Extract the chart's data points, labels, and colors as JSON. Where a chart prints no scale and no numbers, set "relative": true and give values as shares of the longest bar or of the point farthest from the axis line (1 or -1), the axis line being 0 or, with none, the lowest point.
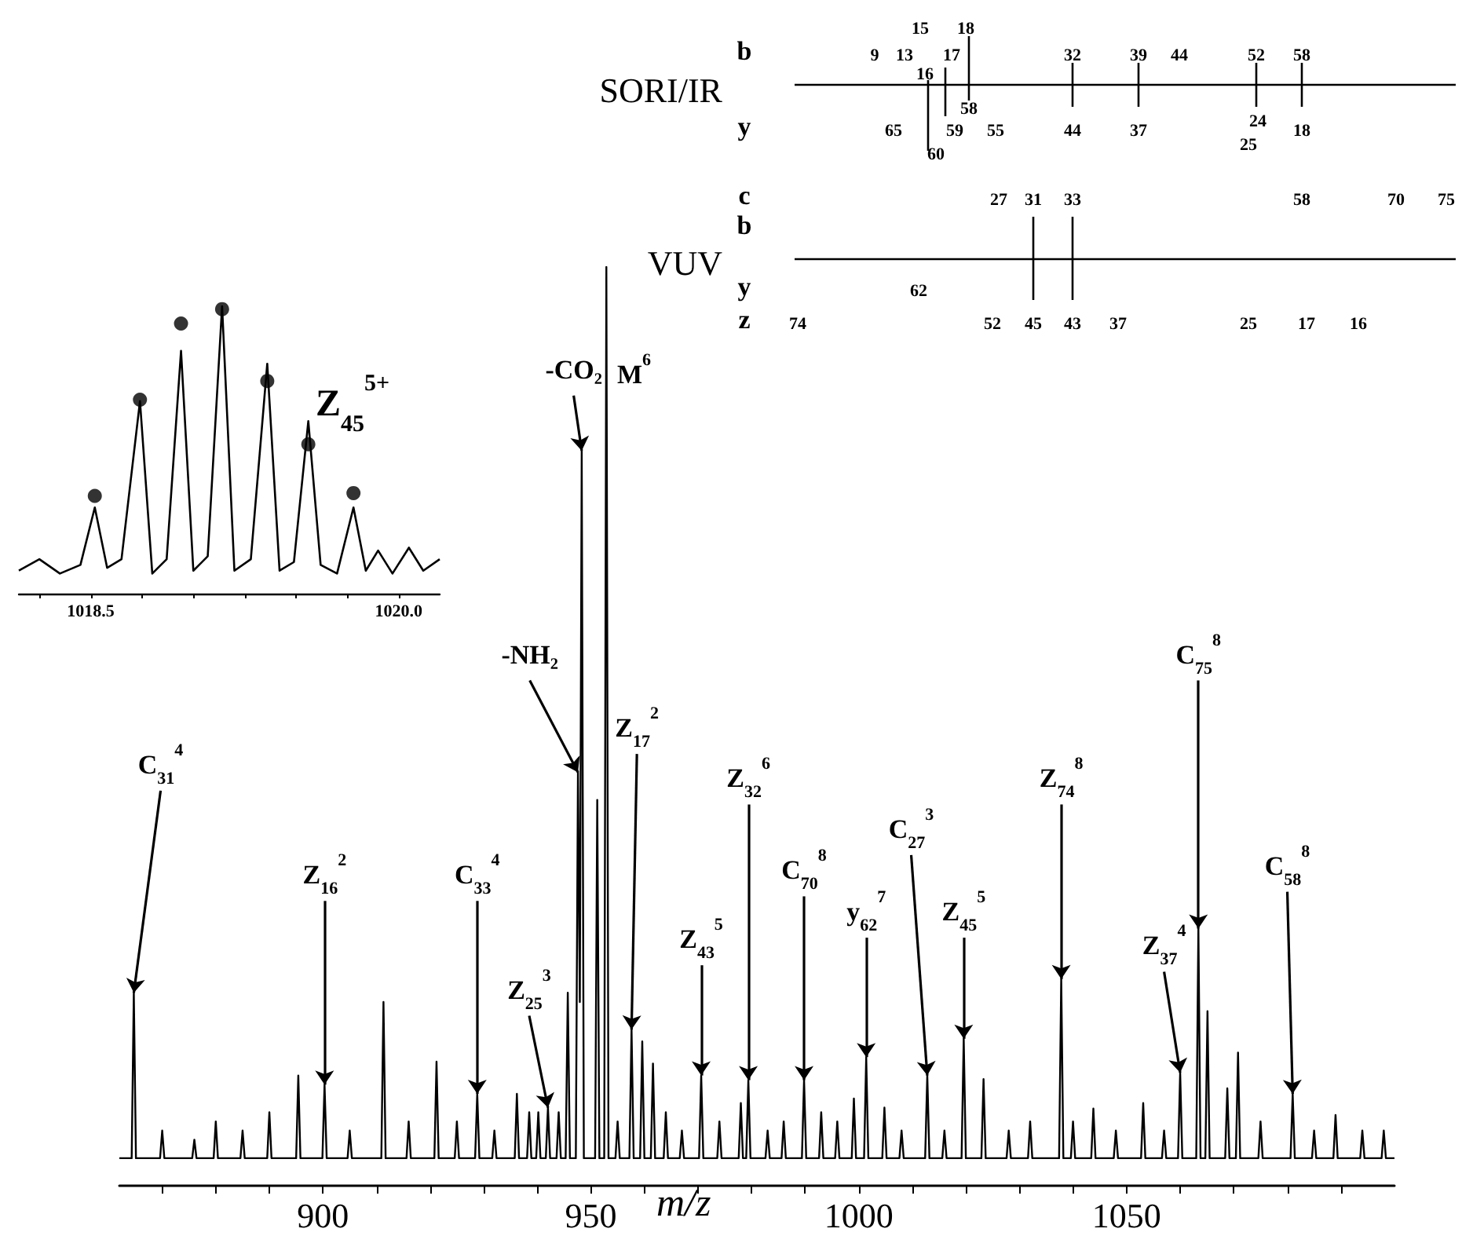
{
  "chart_data": [
    {
      "type": "other",
      "annotations": [
        "SORI/IR",
        "b",
        "y",
        "9",
        "13",
        "15",
        "18",
        "17",
        "16",
        "32",
        "39",
        "44",
        "52",
        "58",
        "65",
        "59",
        "58",
        "55",
        "44",
        "37",
        "24",
        "25",
        "18",
        "60",
        "VUV",
        "c",
        "b",
        "y",
        "z",
        "27",
        "31",
        "33",
        "58",
        "70",
        "75",
        "62",
        "74",
        "52",
        "45",
        "43",
        "37",
        "25",
        "17",
        "16"
      ]
    },
    {
      "type": "line",
      "relative": true,
      "title": "Z$_{45}$$^{5+}$",
      "xlim": [
        1018.15,
        1020.2
      ],
      "xticks": [
        {
          "value": 1018.25,
          "label": null
        },
        1018.5,
        {
          "value": 1018.75,
          "label": null
        },
        {
          "value": 1019,
          "label": null
        },
        {
          "value": 1019.25,
          "label": null
        },
        {
          "value": 1019.5,
          "label": null
        },
        {
          "value": 1019.75,
          "label": null
        },
        {
          "value": 1020,
          "label": "1020.0"
        }
      ],
      "series": [
        {
          "type": "line",
          "color": "#000000",
          "marker": "none",
          "x": [
            1018.15,
            1018.25,
            1018.35,
            1018.45,
            1018.52,
            1018.58,
            1018.65,
            1018.74,
            1018.8,
            1018.87,
            1018.94,
            1019.0,
            1019.07,
            1019.14,
            1019.2,
            1019.28,
            1019.36,
            1019.42,
            1019.49,
            1019.56,
            1019.62,
            1019.7,
            1019.78,
            1019.84,
            1019.9,
            1019.97,
            1020.05,
            1020.12,
            1020.2
          ],
          "values": [
            0.08,
            0.12,
            0.07,
            0.1,
            0.3,
            0.09,
            0.12,
            0.67,
            0.07,
            0.12,
            0.845,
            0.08,
            0.13,
            1,
            0.08,
            0.12,
            0.8,
            0.08,
            0.11,
            0.6,
            0.1,
            0.07,
            0.3,
            0.08,
            0.15,
            0.07,
            0.16,
            0.08,
            0.12
          ]
        },
        {
          "type": "scatter",
          "color": "#000000",
          "marker": "circle",
          "x": [
            1018.52,
            1018.74,
            1018.94,
            1019.14,
            1019.36,
            1019.56,
            1019.78
          ],
          "values": [
            0.34,
            0.675,
            0.94,
            0.99,
            0.74,
            0.52,
            0.35
          ]
        }
      ]
    },
    {
      "type": "line",
      "relative": true,
      "color": "#000000",
      "marker": "none",
      "xlabel": "m/z",
      "xlim": [
        862,
        1100
      ],
      "xticks": [
        {
          "value": 870,
          "label": null
        },
        {
          "value": 880,
          "label": null
        },
        {
          "value": 890,
          "label": null
        },
        900,
        {
          "value": 910,
          "label": null
        },
        {
          "value": 920,
          "label": null
        },
        {
          "value": 930,
          "label": null
        },
        {
          "value": 940,
          "label": null
        },
        950,
        {
          "value": 960,
          "label": null
        },
        {
          "value": 970,
          "label": null
        },
        {
          "value": 980,
          "label": null
        },
        {
          "value": 990,
          "label": null
        },
        1000,
        {
          "value": 1010,
          "label": null
        },
        {
          "value": 1020,
          "label": null
        },
        {
          "value": 1030,
          "label": null
        },
        {
          "value": 1040,
          "label": null
        },
        1050,
        {
          "value": 1060,
          "label": null
        },
        {
          "value": 1070,
          "label": null
        },
        {
          "value": 1080,
          "label": null
        },
        {
          "value": 1090,
          "label": null
        }
      ],
      "x": [
        862,
        864.3,
        864.7,
        865.1,
        869.6,
        870,
        870.4,
        875.6,
        876,
        876.4,
        879.6,
        880,
        880.4,
        884.6,
        885,
        885.4,
        889.6,
        890,
        890.4,
        895,
        895.4,
        895.8,
        899.9,
        900.3,
        900.7,
        904.6,
        905,
        905.4,
        910.9,
        911.3,
        911.7,
        915.6,
        916,
        916.4,
        920.8,
        921.2,
        921.6,
        924.6,
        925,
        925.4,
        928.4,
        928.8,
        929.2,
        931.6,
        932,
        932.4,
        935.8,
        936.2,
        936.6,
        938.1,
        938.5,
        938.9,
        939.8,
        940.2,
        940.6,
        941.6,
        942,
        942.4,
        943.6,
        944,
        944.4,
        945.3,
        945.7,
        946.1,
        947.2,
        947.6,
        947.95,
        948.3,
        948.7,
        950.8,
        951.2,
        951.6,
        952.5,
        952.9,
        953.3,
        954.6,
        955,
        955.4,
        957.2,
        957.6,
        958,
        959.2,
        959.6,
        960,
        961.2,
        961.6,
        962,
        963.6,
        964,
        964.4,
        966.6,
        967,
        967.4,
        970.2,
        970.6,
        971,
        973.6,
        974,
        974.4,
        977.6,
        978,
        978.4,
        979.0,
        979.4,
        979.8,
        982.6,
        983,
        983.4,
        985.6,
        986,
        986.4,
        989.4,
        989.8,
        990.2,
        992.6,
        993,
        993.4,
        995.6,
        996,
        996.4,
        998.7,
        999.1,
        999.5,
        1001,
        1001.4,
        1001.8,
        1004.4,
        1004.8,
        1005.2,
        1007.6,
        1008,
        1008.4,
        1012.4,
        1012.8,
        1013.2,
        1015.6,
        1016,
        1016.4,
        1019.2,
        1019.6,
        1020,
        1022.9,
        1023.3,
        1023.7,
        1027.6,
        1028,
        1028.4,
        1031.6,
        1032,
        1032.4,
        1037.4,
        1037.8,
        1038.2,
        1039.6,
        1040,
        1040.4,
        1043.4,
        1043.8,
        1044.2,
        1047.6,
        1048,
        1048.4,
        1052.7,
        1053.1,
        1053.5,
        1056.6,
        1057,
        1057.4,
        1059.6,
        1060,
        1060.4,
        1063,
        1063.4,
        1063.8,
        1064.7,
        1065.1,
        1065.5,
        1068.4,
        1068.8,
        1069.2,
        1070.4,
        1070.8,
        1071.2,
        1074.6,
        1075,
        1075.4,
        1080.6,
        1081,
        1081.4,
        1084.6,
        1085,
        1085.4,
        1088.6,
        1089,
        1089.4,
        1093.6,
        1094,
        1094.4,
        1097.6,
        1098,
        1098.4,
        1100
      ],
      "values": [
        0.03,
        0.03,
        0.21,
        0.03,
        0.03,
        0.06,
        0.03,
        0.03,
        0.05,
        0.03,
        0.03,
        0.07,
        0.03,
        0.03,
        0.06,
        0.03,
        0.03,
        0.08,
        0.03,
        0.03,
        0.12,
        0.03,
        0.03,
        0.11,
        0.03,
        0.03,
        0.06,
        0.03,
        0.03,
        0.2,
        0.03,
        0.03,
        0.07,
        0.03,
        0.03,
        0.135,
        0.03,
        0.03,
        0.07,
        0.03,
        0.03,
        0.1,
        0.03,
        0.03,
        0.06,
        0.03,
        0.03,
        0.1,
        0.03,
        0.03,
        0.08,
        0.03,
        0.03,
        0.08,
        0.03,
        0.03,
        0.085,
        0.03,
        0.03,
        0.08,
        0.03,
        0.03,
        0.21,
        0.03,
        0.03,
        0.45,
        0.2,
        0.8,
        0.03,
        0.03,
        0.42,
        0.03,
        0.03,
        1,
        0.03,
        0.03,
        0.07,
        0.03,
        0.03,
        0.17,
        0.03,
        0.03,
        0.157,
        0.03,
        0.03,
        0.133,
        0.03,
        0.03,
        0.08,
        0.03,
        0.03,
        0.06,
        0.03,
        0.03,
        0.12,
        0.03,
        0.03,
        0.07,
        0.03,
        0.03,
        0.09,
        0.03,
        0.03,
        0.115,
        0.03,
        0.03,
        0.06,
        0.03,
        0.03,
        0.07,
        0.03,
        0.03,
        0.115,
        0.03,
        0.03,
        0.08,
        0.03,
        0.03,
        0.07,
        0.03,
        0.03,
        0.095,
        0.03,
        0.03,
        0.14,
        0.03,
        0.03,
        0.085,
        0.03,
        0.03,
        0.06,
        0.03,
        0.03,
        0.12,
        0.03,
        0.03,
        0.06,
        0.03,
        0.03,
        0.16,
        0.03,
        0.03,
        0.116,
        0.03,
        0.03,
        0.06,
        0.03,
        0.03,
        0.07,
        0.03,
        0.03,
        0.225,
        0.03,
        0.03,
        0.07,
        0.03,
        0.03,
        0.084,
        0.03,
        0.03,
        0.06,
        0.03,
        0.03,
        0.09,
        0.03,
        0.03,
        0.06,
        0.03,
        0.03,
        0.123,
        0.03,
        0.03,
        0.28,
        0.03,
        0.03,
        0.19,
        0.03,
        0.03,
        0.106,
        0.03,
        0.03,
        0.145,
        0.03,
        0.03,
        0.07,
        0.03,
        0.03,
        0.1,
        0.03,
        0.03,
        0.06,
        0.03,
        0.03,
        0.077,
        0.03,
        0.03,
        0.06,
        0.03,
        0.03,
        0.06,
        0.03,
        0.03
      ],
      "annotations": [
        {
          "text": "C$_{31}$$^{4}$",
          "x": 864.7,
          "y": 0.21
        },
        {
          "text": "Z$_{16}$$^{2}$",
          "x": 900.3,
          "y": 0.11
        },
        {
          "text": "C$_{33}$$^{4}$",
          "x": 928.8,
          "y": 0.1
        },
        {
          "text": "Z$_{25}$$^{3}$",
          "x": 942,
          "y": 0.085
        },
        {
          "text": "-NH₂",
          "x": 947.6,
          "y": 0.45
        },
        {
          "text": "-CO₂",
          "x": 948.3,
          "y": 0.8
        },
        "M$^{6}$",
        {
          "text": "Z$_{17}$$^{2}$",
          "x": 957.6,
          "y": 0.17
        },
        {
          "text": "Z$_{43}$$^{5}$",
          "x": 970.6,
          "y": 0.12
        },
        {
          "text": "Z$_{32}$$^{6}$",
          "x": 979.4,
          "y": 0.115
        },
        {
          "text": "C$_{70}$$^{8}$",
          "x": 989.8,
          "y": 0.115
        },
        {
          "text": "y$_{62}$$^{7}$",
          "x": 1001.4,
          "y": 0.14
        },
        {
          "text": "C$_{27}$$^{3}$",
          "x": 1012.8,
          "y": 0.12
        },
        {
          "text": "Z$_{45}$$^{5}$",
          "x": 1019.6,
          "y": 0.16
        },
        {
          "text": "Z$_{74}$$^{8}$",
          "x": 1037.8,
          "y": 0.225
        },
        {
          "text": "Z$_{37}$$^{4}$",
          "x": 1060,
          "y": 0.123
        },
        {
          "text": "C$_{75}$$^{8}$",
          "x": 1063.4,
          "y": 0.28
        },
        {
          "text": "C$_{58}$$^{8}$",
          "x": 1081,
          "y": 0.1
        }
      ]
    }
  ]
}
